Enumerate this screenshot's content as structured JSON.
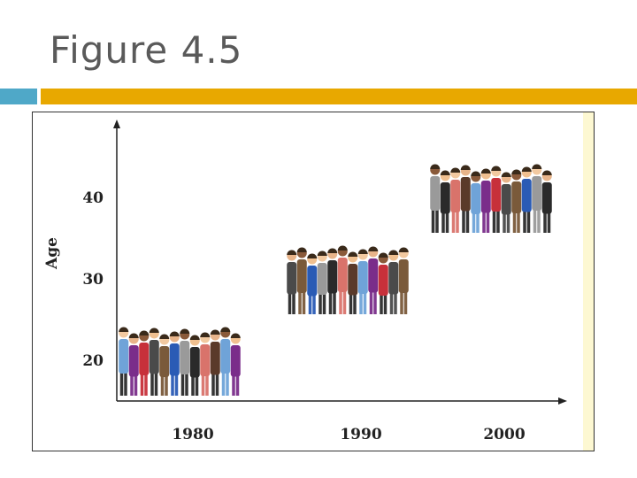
{
  "slide": {
    "title": "Figure 4.5"
  },
  "colors": {
    "title_text": "#5a5a5a",
    "accent_blue": "#4fa8c8",
    "accent_gold": "#e8a800",
    "axis": "#222222"
  },
  "chart_data": {
    "type": "scatter",
    "title": "",
    "xlabel": "",
    "ylabel": "Age",
    "x_ticks": [
      "1980",
      "1990",
      "2000"
    ],
    "y_ticks": [
      "20",
      "30",
      "40"
    ],
    "series": [
      {
        "points": [
          {
            "x": "1980",
            "y": 20
          },
          {
            "x": "1990",
            "y": 30
          },
          {
            "x": "2000",
            "y": 40
          }
        ]
      }
    ],
    "ylim": [
      15,
      45
    ],
    "grid": false,
    "marker": "group-of-people-icon"
  }
}
